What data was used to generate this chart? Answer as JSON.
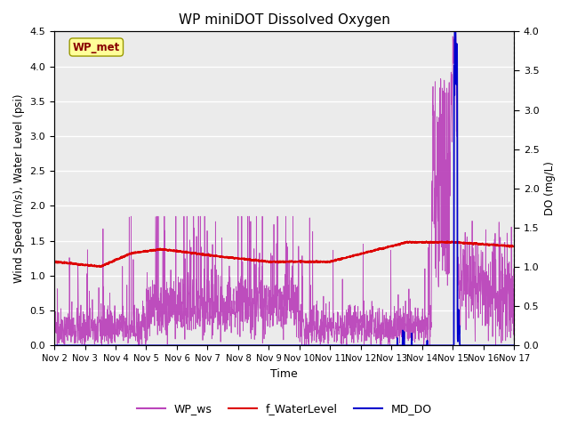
{
  "title": "WP miniDOT Dissolved Oxygen",
  "xlabel": "Time",
  "ylabel_left": "Wind Speed (m/s), Water Level (psi)",
  "ylabel_right": "DO (mg/L)",
  "ylim_left": [
    0.0,
    4.5
  ],
  "ylim_right": [
    0.0,
    4.0
  ],
  "yticks_left": [
    0.0,
    0.5,
    1.0,
    1.5,
    2.0,
    2.5,
    3.0,
    3.5,
    4.0,
    4.5
  ],
  "yticks_right": [
    0.0,
    0.5,
    1.0,
    1.5,
    2.0,
    2.5,
    3.0,
    3.5,
    4.0
  ],
  "xtick_labels": [
    "Nov 2",
    "Nov 3",
    "Nov 4",
    "Nov 5",
    "Nov 6",
    "Nov 7",
    "Nov 8",
    "Nov 9",
    "Nov 10",
    "Nov 11",
    "Nov 12",
    "Nov 13",
    "Nov 14",
    "Nov 15",
    "Nov 16",
    "Nov 17"
  ],
  "wp_ws_color": "#bb44bb",
  "f_waterlevel_color": "#dd0000",
  "md_do_color": "#0000cc",
  "background_color": "#ebebeb",
  "annotation_text": "WP_met",
  "annotation_bg": "#ffff99",
  "annotation_fg": "#880000",
  "legend_labels": [
    "WP_ws",
    "f_WaterLevel",
    "MD_DO"
  ],
  "n_points": 2160,
  "seed": 42
}
